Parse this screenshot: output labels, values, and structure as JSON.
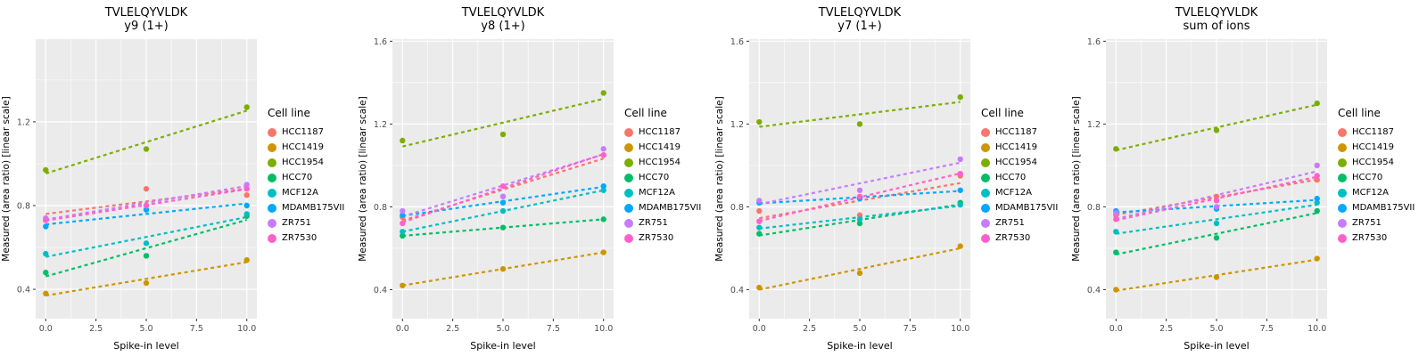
{
  "figure": {
    "legend_title": "Cell line",
    "x_axis_label": "Spike-in level",
    "y_axis_label": "Measured (area ratio) [linear scale]"
  },
  "cell_lines": [
    {
      "name": "HCC1187",
      "color": "#F8766D"
    },
    {
      "name": "HCC1419",
      "color": "#CD9600"
    },
    {
      "name": "HCC1954",
      "color": "#7CAE00"
    },
    {
      "name": "HCC70",
      "color": "#00BE67"
    },
    {
      "name": "MCF12A",
      "color": "#00BFC4"
    },
    {
      "name": "MDAMB175VII",
      "color": "#00A9FF"
    },
    {
      "name": "ZR751",
      "color": "#C77CFF"
    },
    {
      "name": "ZR7530",
      "color": "#FF61CC"
    }
  ],
  "style": {
    "panel_background": "#EBEBEB",
    "grid_color": "#FFFFFF",
    "tick_text_color": "#4D4D4D",
    "tick_mark_color": "#333333",
    "trend_line_style": "dashed"
  },
  "chart_data": [
    {
      "type": "scatter",
      "title": "TVLELQYVLDK",
      "subtitle": "y9 (1+)",
      "xlabel": "Spike-in level",
      "ylabel": "Measured (area ratio) [linear scale]",
      "legend_title": "Cell line",
      "x": [
        0,
        5,
        10
      ],
      "xlim": [
        -0.5,
        10.5
      ],
      "ylim": [
        0.26,
        1.595
      ],
      "x_tick_values": [
        0,
        2.5,
        5,
        7.5,
        10
      ],
      "x_tick_labels": [
        "0.0",
        "2.5",
        "5.0",
        "7.5",
        "10.0"
      ],
      "y_tick_values": [
        0.4,
        0.8,
        1.2
      ],
      "y_tick_labels": [
        "0.4",
        "0.8",
        "1.2"
      ],
      "grid": true,
      "legend_position": "right",
      "trend": "linear-dashed",
      "series": [
        {
          "name": "HCC1187",
          "values": [
            0.73,
            0.88,
            0.85
          ]
        },
        {
          "name": "HCC1419",
          "values": [
            0.38,
            0.43,
            0.54
          ]
        },
        {
          "name": "HCC1954",
          "values": [
            0.97,
            1.07,
            1.27
          ]
        },
        {
          "name": "HCC70",
          "values": [
            0.48,
            0.56,
            0.75
          ]
        },
        {
          "name": "MCF12A",
          "values": [
            0.57,
            0.62,
            0.76
          ]
        },
        {
          "name": "MDAMB175VII",
          "values": [
            0.7,
            0.78,
            0.8
          ]
        },
        {
          "name": "ZR751",
          "values": [
            0.74,
            0.8,
            0.9
          ]
        },
        {
          "name": "ZR7530",
          "values": [
            0.73,
            0.8,
            0.88
          ]
        }
      ]
    },
    {
      "type": "scatter",
      "title": "TVLELQYVLDK",
      "subtitle": "y8 (1+)",
      "xlabel": "Spike-in level",
      "ylabel": "Measured (area ratio) [linear scale]",
      "legend_title": "Cell line",
      "x": [
        0,
        5,
        10
      ],
      "xlim": [
        -0.5,
        10.5
      ],
      "ylim": [
        0.26,
        1.61
      ],
      "x_tick_values": [
        0,
        2.5,
        5,
        7.5,
        10
      ],
      "x_tick_labels": [
        "0.0",
        "2.5",
        "5.0",
        "7.5",
        "10.0"
      ],
      "y_tick_values": [
        0.4,
        0.8,
        1.2,
        1.6
      ],
      "y_tick_labels": [
        "0.4",
        "0.8",
        "1.2",
        "1.6"
      ],
      "grid": true,
      "legend_position": "right",
      "trend": "linear-dashed",
      "series": [
        {
          "name": "HCC1187",
          "values": [
            0.75,
            0.85,
            1.05
          ]
        },
        {
          "name": "HCC1419",
          "values": [
            0.42,
            0.5,
            0.58
          ]
        },
        {
          "name": "HCC1954",
          "values": [
            1.12,
            1.15,
            1.35
          ]
        },
        {
          "name": "HCC70",
          "values": [
            0.66,
            0.7,
            0.74
          ]
        },
        {
          "name": "MCF12A",
          "values": [
            0.68,
            0.78,
            0.88
          ]
        },
        {
          "name": "MDAMB175VII",
          "values": [
            0.76,
            0.82,
            0.9
          ]
        },
        {
          "name": "ZR751",
          "values": [
            0.78,
            0.85,
            1.08
          ]
        },
        {
          "name": "ZR7530",
          "values": [
            0.72,
            0.9,
            1.05
          ]
        }
      ]
    },
    {
      "type": "scatter",
      "title": "TVLELQYVLDK",
      "subtitle": "y7 (1+)",
      "xlabel": "Spike-in level",
      "ylabel": "Measured (area ratio) [linear scale]",
      "legend_title": "Cell line",
      "x": [
        0,
        5,
        10
      ],
      "xlim": [
        -0.5,
        10.5
      ],
      "ylim": [
        0.26,
        1.61
      ],
      "x_tick_values": [
        0,
        2.5,
        5,
        7.5,
        10
      ],
      "x_tick_labels": [
        "0.0",
        "2.5",
        "5.0",
        "7.5",
        "10.0"
      ],
      "y_tick_values": [
        0.4,
        0.8,
        1.2,
        1.6
      ],
      "y_tick_labels": [
        "0.4",
        "0.8",
        "1.2",
        "1.6"
      ],
      "grid": true,
      "legend_position": "right",
      "trend": "linear-dashed",
      "series": [
        {
          "name": "HCC1187",
          "values": [
            0.78,
            0.76,
            0.95
          ]
        },
        {
          "name": "HCC1419",
          "values": [
            0.41,
            0.48,
            0.61
          ]
        },
        {
          "name": "HCC1954",
          "values": [
            1.21,
            1.2,
            1.33
          ]
        },
        {
          "name": "HCC70",
          "values": [
            0.67,
            0.72,
            0.82
          ]
        },
        {
          "name": "MCF12A",
          "values": [
            0.7,
            0.74,
            0.81
          ]
        },
        {
          "name": "MDAMB175VII",
          "values": [
            0.82,
            0.84,
            0.88
          ]
        },
        {
          "name": "ZR751",
          "values": [
            0.83,
            0.88,
            1.03
          ]
        },
        {
          "name": "ZR7530",
          "values": [
            0.73,
            0.85,
            0.96
          ]
        }
      ]
    },
    {
      "type": "scatter",
      "title": "TVLELQYVLDK",
      "subtitle": "sum of ions",
      "xlabel": "Spike-in level",
      "ylabel": "Measured (area ratio) [linear scale]",
      "legend_title": "Cell line",
      "x": [
        0,
        5,
        10
      ],
      "xlim": [
        -0.5,
        10.5
      ],
      "ylim": [
        0.26,
        1.61
      ],
      "x_tick_values": [
        0,
        2.5,
        5,
        7.5,
        10
      ],
      "x_tick_labels": [
        "0.0",
        "2.5",
        "5.0",
        "7.5",
        "10.0"
      ],
      "y_tick_values": [
        0.4,
        0.8,
        1.2,
        1.6
      ],
      "y_tick_labels": [
        "0.4",
        "0.8",
        "1.2",
        "1.6"
      ],
      "grid": true,
      "legend_position": "right",
      "trend": "linear-dashed",
      "series": [
        {
          "name": "HCC1187",
          "values": [
            0.76,
            0.85,
            0.93
          ]
        },
        {
          "name": "HCC1419",
          "values": [
            0.4,
            0.46,
            0.55
          ]
        },
        {
          "name": "HCC1954",
          "values": [
            1.08,
            1.17,
            1.3
          ]
        },
        {
          "name": "HCC70",
          "values": [
            0.58,
            0.65,
            0.78
          ]
        },
        {
          "name": "MCF12A",
          "values": [
            0.68,
            0.72,
            0.82
          ]
        },
        {
          "name": "MDAMB175VII",
          "values": [
            0.78,
            0.79,
            0.84
          ]
        },
        {
          "name": "ZR751",
          "values": [
            0.77,
            0.8,
            1.0
          ]
        },
        {
          "name": "ZR7530",
          "values": [
            0.74,
            0.83,
            0.95
          ]
        }
      ]
    }
  ]
}
